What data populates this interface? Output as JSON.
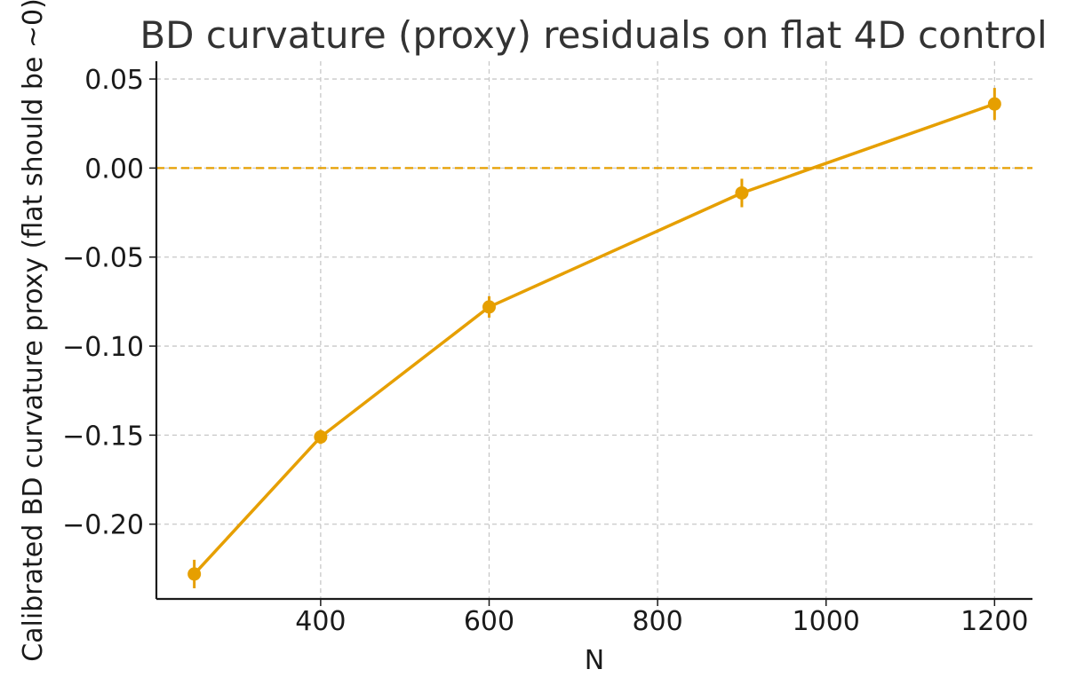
{
  "chart_data": {
    "type": "line",
    "title": "BD curvature (proxy) residuals on flat 4D control",
    "xlabel": "N",
    "ylabel": "Calibrated BD curvature proxy  (flat should be ~0)",
    "xlim": [
      205,
      1245
    ],
    "ylim": [
      -0.242,
      0.06
    ],
    "x_ticks": [
      400,
      600,
      800,
      1000,
      1200
    ],
    "x_tick_labels": [
      "400",
      "600",
      "800",
      "1000",
      "1200"
    ],
    "y_ticks": [
      0.05,
      0.0,
      -0.05,
      -0.1,
      -0.15,
      -0.2
    ],
    "y_tick_labels": [
      "0.05",
      "0.00",
      "−0.05",
      "−0.10",
      "−0.15",
      "−0.20"
    ],
    "grid": true,
    "reference_line": {
      "y": 0.0,
      "style": "dashed"
    },
    "series": [
      {
        "x": [
          250,
          400,
          600,
          900,
          1200
        ],
        "y": [
          -0.228,
          -0.151,
          -0.078,
          -0.014,
          0.036
        ],
        "yerr": [
          0.008,
          0.004,
          0.006,
          0.008,
          0.009
        ],
        "color": "#E69F00"
      }
    ]
  }
}
